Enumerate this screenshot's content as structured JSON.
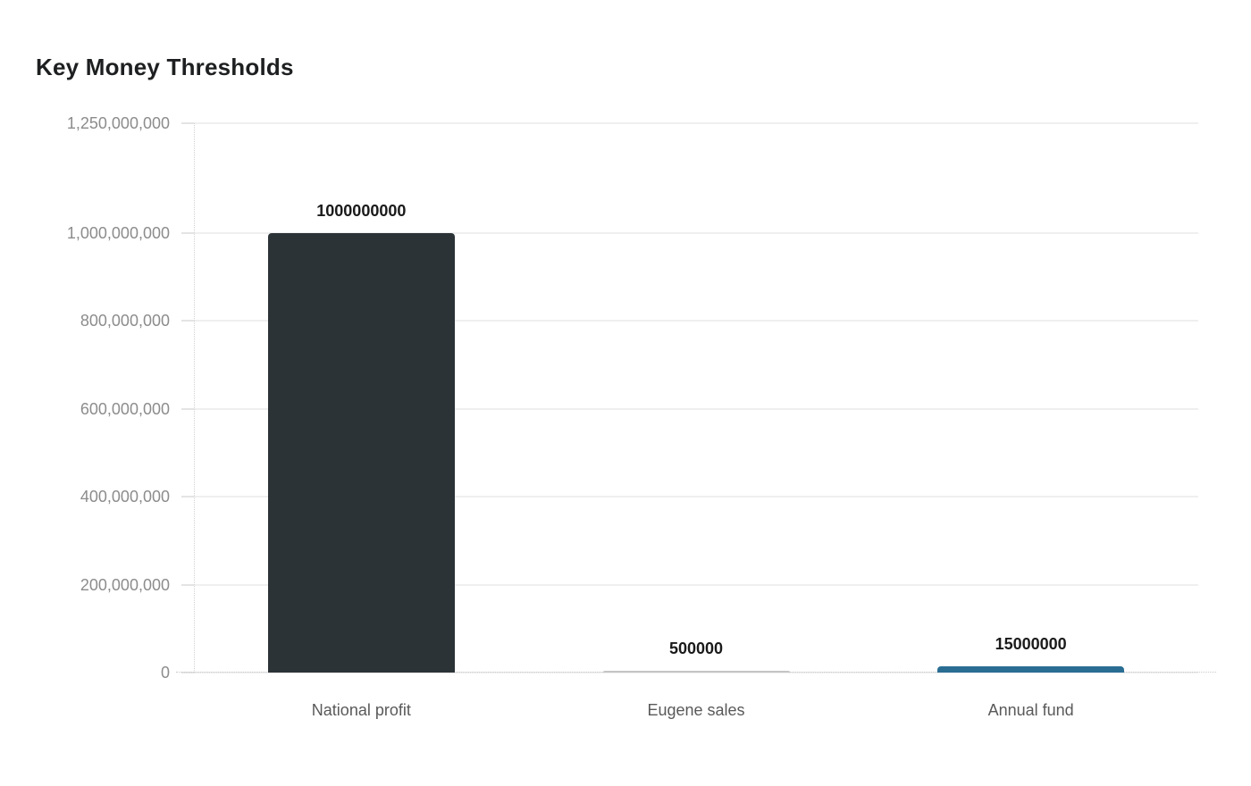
{
  "title": "Key Money Thresholds",
  "chart_data": {
    "type": "bar",
    "title": "Key Money Thresholds",
    "categories": [
      "National profit",
      "Eugene sales",
      "Annual fund"
    ],
    "values": [
      1000000000,
      500000,
      15000000
    ],
    "value_labels": [
      "1000000000",
      "500000",
      "15000000"
    ],
    "bar_colors": [
      "#2b3337",
      "#c4c4c4",
      "#2a6d93"
    ],
    "xlabel": "",
    "ylabel": "",
    "ylim": [
      0,
      1250000000
    ],
    "grid": "horizontal",
    "legend": "none",
    "y_ticks": [
      {
        "value": 0,
        "label": "0"
      },
      {
        "value": 200000000,
        "label": "200,000,000"
      },
      {
        "value": 400000000,
        "label": "400,000,000"
      },
      {
        "value": 600000000,
        "label": "600,000,000"
      },
      {
        "value": 800000000,
        "label": "800,000,000"
      },
      {
        "value": 1000000000,
        "label": "1,000,000,000"
      },
      {
        "value": 1250000000,
        "label": "1,250,000,000"
      }
    ]
  },
  "colors": {
    "background": "#ffffff",
    "title": "#1d1f20",
    "gridline": "#efefef",
    "axis_dotted": "#d2d2d2",
    "y_tick_label": "#8c8c8c",
    "category_label": "#595959",
    "value_label": "#1a1a1a"
  }
}
